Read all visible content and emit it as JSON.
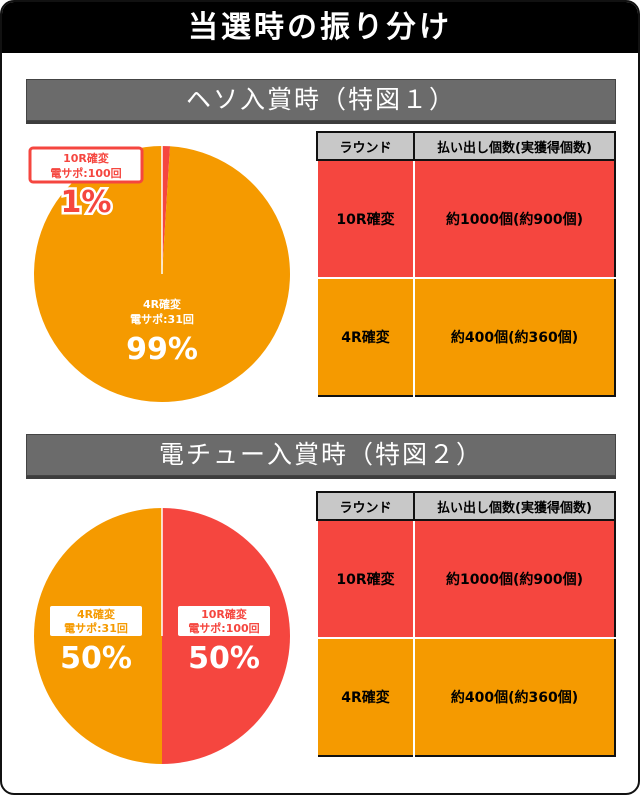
{
  "title": "当選時の振り分け",
  "sections": [
    {
      "heading": "ヘソ入賞時（特図１）",
      "chart_data": {
        "type": "pie",
        "slices": [
          {
            "name_line1": "10R確変",
            "name_line2": "電サポ:100回",
            "value": 1,
            "label": "1%",
            "color": "#f5463f"
          },
          {
            "name_line1": "4R確変",
            "name_line2": "電サポ:31回",
            "value": 99,
            "label": "99%",
            "color": "#f59a00"
          }
        ]
      },
      "table": {
        "headers": [
          "ラウンド",
          "払い出し個数(実獲得個数)"
        ],
        "rows": [
          {
            "round": "10R確変",
            "payout": "約1000個(約900個)"
          },
          {
            "round": "4R確変",
            "payout": "約400個(約360個)"
          }
        ]
      }
    },
    {
      "heading": "電チュー入賞時（特図２）",
      "chart_data": {
        "type": "pie",
        "slices": [
          {
            "name_line1": "10R確変",
            "name_line2": "電サポ:100回",
            "value": 50,
            "label": "50%",
            "color": "#f5463f"
          },
          {
            "name_line1": "4R確変",
            "name_line2": "電サポ:31回",
            "value": 50,
            "label": "50%",
            "color": "#f59a00"
          }
        ]
      },
      "table": {
        "headers": [
          "ラウンド",
          "払い出し個数(実獲得個数)"
        ],
        "rows": [
          {
            "round": "10R確変",
            "payout": "約1000個(約900個)"
          },
          {
            "round": "4R確変",
            "payout": "約400個(約360個)"
          }
        ]
      }
    }
  ]
}
